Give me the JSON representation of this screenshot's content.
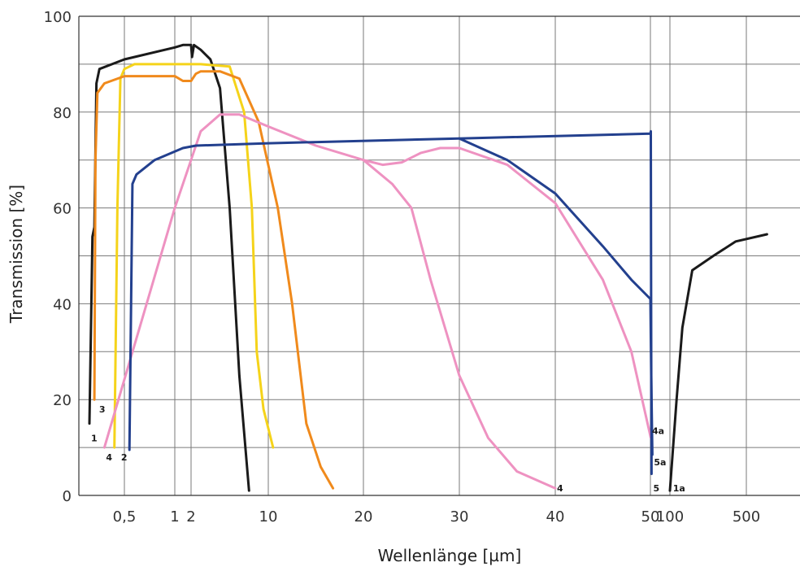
{
  "chart_data": {
    "type": "line",
    "xlabel": "Wellenlänge [µm]",
    "ylabel": "Transmission [%]",
    "ylim": [
      0,
      100
    ],
    "grid": true,
    "x_ticks": [
      "0,5",
      "1",
      "2",
      "10",
      "20",
      "30",
      "40",
      "50",
      "100",
      "500"
    ],
    "y_ticks": [
      "0",
      "20",
      "40",
      "60",
      "80",
      "100"
    ],
    "series": [
      {
        "id": "1",
        "color": "#1a1a1a",
        "points": [
          [
            0.15,
            15
          ],
          [
            0.18,
            54
          ],
          [
            0.2,
            56
          ],
          [
            0.22,
            86
          ],
          [
            0.25,
            89
          ],
          [
            0.5,
            91
          ],
          [
            1.0,
            93.5
          ],
          [
            1.5,
            94
          ],
          [
            2.0,
            94
          ],
          [
            2.1,
            91.5
          ],
          [
            2.3,
            94
          ],
          [
            3.0,
            93
          ],
          [
            4.0,
            91
          ],
          [
            5.0,
            85
          ],
          [
            6.0,
            60
          ],
          [
            7.0,
            25
          ],
          [
            8.0,
            1
          ]
        ]
      },
      {
        "id": "1a",
        "color": "#1a1a1a",
        "points": [
          [
            100,
            1
          ],
          [
            115,
            20
          ],
          [
            130,
            35
          ],
          [
            160,
            47
          ],
          [
            250,
            50
          ],
          [
            400,
            53
          ],
          [
            650,
            54.5
          ]
        ]
      },
      {
        "id": "2",
        "color": "#f5d31a",
        "points": [
          [
            0.4,
            10
          ],
          [
            0.43,
            60
          ],
          [
            0.46,
            87
          ],
          [
            0.5,
            89
          ],
          [
            0.6,
            90
          ],
          [
            1.0,
            90
          ],
          [
            3.0,
            90
          ],
          [
            6.0,
            89.5
          ],
          [
            7.5,
            80
          ],
          [
            8.3,
            60
          ],
          [
            8.8,
            30
          ],
          [
            9.5,
            18
          ],
          [
            10.5,
            10
          ]
        ]
      },
      {
        "id": "3",
        "color": "#f08a1c",
        "points": [
          [
            0.2,
            20
          ],
          [
            0.21,
            70
          ],
          [
            0.23,
            84
          ],
          [
            0.3,
            86
          ],
          [
            0.5,
            87.5
          ],
          [
            1.0,
            87.5
          ],
          [
            1.5,
            86.5
          ],
          [
            2.0,
            86.5
          ],
          [
            2.5,
            88
          ],
          [
            3.0,
            88.5
          ],
          [
            5.0,
            88.5
          ],
          [
            7.0,
            87
          ],
          [
            9.0,
            78
          ],
          [
            11.0,
            60
          ],
          [
            12.5,
            40
          ],
          [
            14.0,
            15
          ],
          [
            15.5,
            6
          ],
          [
            16.8,
            1.5
          ]
        ]
      },
      {
        "id": "4",
        "color": "#ee92c1",
        "points": [
          [
            0.3,
            10
          ],
          [
            1.0,
            60
          ],
          [
            2.0,
            70
          ],
          [
            3.0,
            76
          ],
          [
            5.0,
            79.5
          ],
          [
            7.0,
            79.5
          ],
          [
            10.0,
            77
          ],
          [
            15.0,
            73
          ],
          [
            20.0,
            70
          ],
          [
            23.0,
            65
          ],
          [
            25.0,
            60
          ],
          [
            27.0,
            45
          ],
          [
            30.0,
            25
          ],
          [
            33.0,
            12
          ],
          [
            36.0,
            5
          ],
          [
            40.0,
            1.5
          ]
        ]
      },
      {
        "id": "4a",
        "color": "#ee92c1",
        "points": [
          [
            20.0,
            70
          ],
          [
            22.0,
            69
          ],
          [
            24.0,
            69.5
          ],
          [
            26.0,
            71.5
          ],
          [
            28.0,
            72.5
          ],
          [
            30.0,
            72.5
          ],
          [
            35.0,
            69
          ],
          [
            40.0,
            61
          ],
          [
            45.0,
            45
          ],
          [
            48.0,
            30
          ],
          [
            51.0,
            12
          ]
        ]
      },
      {
        "id": "5",
        "color": "#23408e",
        "points": [
          [
            0.55,
            9.5
          ],
          [
            0.58,
            65
          ],
          [
            0.62,
            67
          ],
          [
            0.8,
            70
          ],
          [
            1.5,
            72.5
          ],
          [
            2.5,
            73
          ],
          [
            10.0,
            73.5
          ],
          [
            30.0,
            74.5
          ],
          [
            50.0,
            75.5
          ],
          [
            51.0,
            76
          ],
          [
            52.0,
            30
          ],
          [
            53.0,
            4.5
          ]
        ]
      },
      {
        "id": "5a",
        "color": "#23408e",
        "points": [
          [
            30.0,
            74.5
          ],
          [
            35.0,
            70
          ],
          [
            40.0,
            63
          ],
          [
            45.0,
            52
          ],
          [
            48.0,
            45
          ],
          [
            50.0,
            41
          ],
          [
            52.0,
            25
          ],
          [
            55.0,
            8.5
          ]
        ]
      }
    ],
    "labels": [
      {
        "text": "1",
        "x": 0.15,
        "y": 12
      },
      {
        "text": "3",
        "x": 0.23,
        "y": 18
      },
      {
        "text": "4",
        "x": 0.3,
        "y": 8
      },
      {
        "text": "2",
        "x": 0.45,
        "y": 8
      },
      {
        "text": "4",
        "x": 40.0,
        "y": 1.5
      },
      {
        "text": "4a",
        "x": 50.0,
        "y": 13.5
      },
      {
        "text": "5",
        "x": 53.0,
        "y": 1.5
      },
      {
        "text": "5a",
        "x": 55.0,
        "y": 7
      },
      {
        "text": "1a",
        "x": 103.0,
        "y": 1.5
      }
    ]
  }
}
